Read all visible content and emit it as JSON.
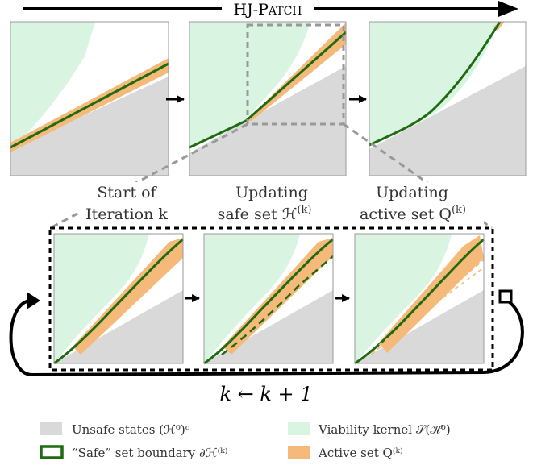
{
  "header": {
    "title_prefix": "HJ-P",
    "title_smallcaps": "ATCH"
  },
  "stages": {
    "start": {
      "line1": "Start of",
      "line2": "Iteration k"
    },
    "safe": {
      "line1": "Updating",
      "line2": "safe set ℋ",
      "sup": "(k)"
    },
    "active": {
      "line1": "Updating",
      "line2": "active set Q",
      "sup": "(k)"
    }
  },
  "loop_label": "k ← k + 1",
  "legend": {
    "unsafe": "Unsafe states (ℋ⁰)ᶜ",
    "viability": "Viability kernel 𝒮(ℋ⁰)",
    "boundary": "“Safe” set boundary ∂ℋ⁽ᵏ⁾",
    "active": "Active set Q⁽ᵏ⁾"
  },
  "colors": {
    "unsafe": "#d9d9d9",
    "viability": "#d9f5e1",
    "active": "#f5b97a",
    "boundary": "#1f6b12",
    "border": "#9a9a9a"
  }
}
